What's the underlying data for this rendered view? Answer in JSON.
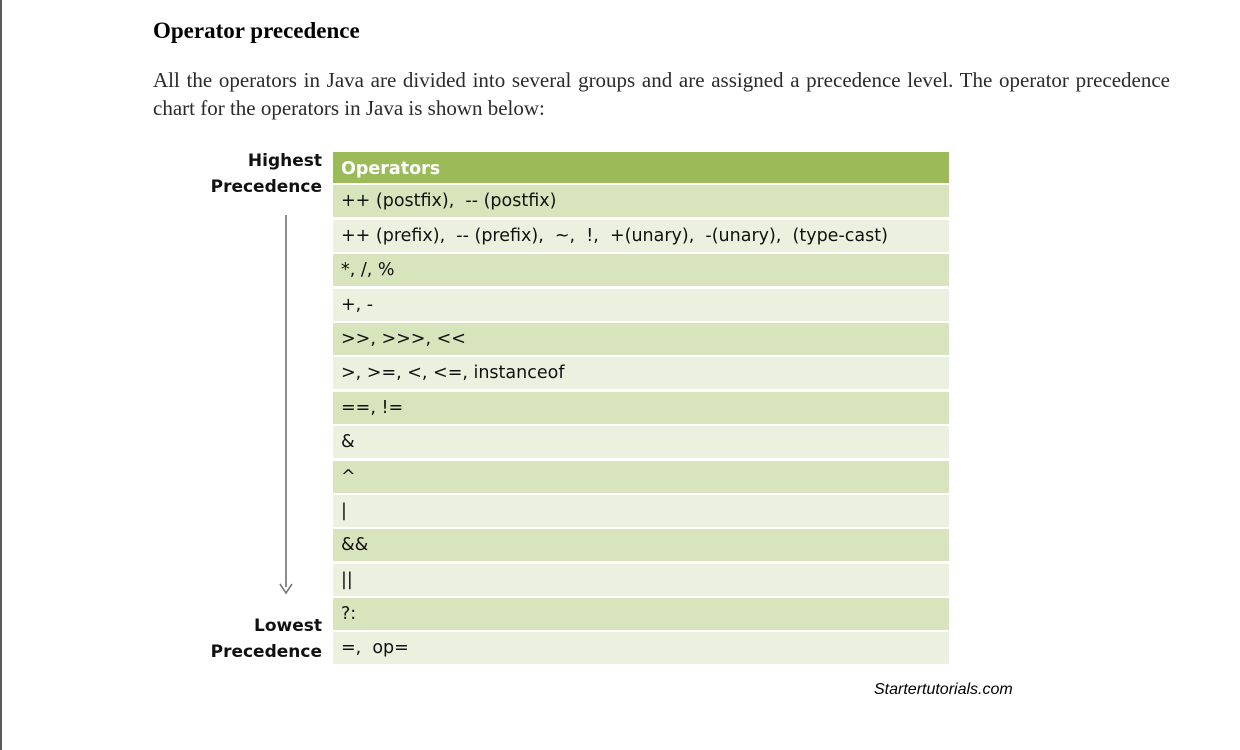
{
  "section": {
    "heading": "Operator precedence",
    "paragraph": "All the operators in Java are divided into several groups and are assigned a precedence level. The operator precedence chart for the operators in Java is shown below:"
  },
  "figure": {
    "top_label": [
      "Highest",
      "Precedence"
    ],
    "bottom_label": [
      "Lowest",
      "Precedence"
    ],
    "header": "Operators",
    "rows": [
      "++ (postfix),  -- (postfix)",
      "++ (prefix),  -- (prefix),  ~,  !,  +(unary),  -(unary),  (type-cast)",
      "*, /, %",
      "+, -",
      ">>, >>>, <<",
      ">, >=, <, <=, instanceof",
      "==, !=",
      "&",
      "^",
      "|",
      "&&",
      "||",
      "?:",
      "=,  op="
    ],
    "credit": "Startertutorials.com",
    "colors": {
      "header": "#9bbb59",
      "row_dark": "#d8e4bc",
      "row_light": "#ebf1de"
    }
  }
}
